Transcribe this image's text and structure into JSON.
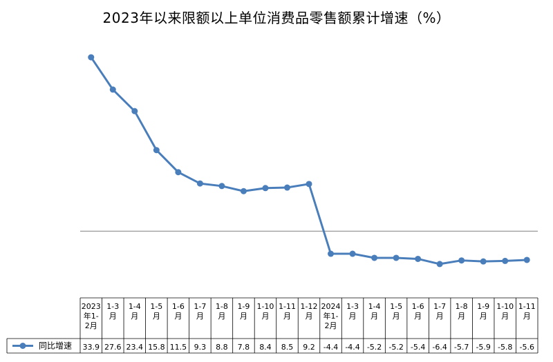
{
  "title": "2023年以来限额以上单位消费品零售额累计增速（%）",
  "chart_data": {
    "type": "line",
    "title": "2023年以来限额以上单位消费品零售额累计增速（%）",
    "categories": [
      [
        "2023",
        "年1-",
        "2月"
      ],
      [
        "1-3",
        "月"
      ],
      [
        "1-4",
        "月"
      ],
      [
        "1-5",
        "月"
      ],
      [
        "1-6",
        "月"
      ],
      [
        "1-7",
        "月"
      ],
      [
        "1-8",
        "月"
      ],
      [
        "1-9",
        "月"
      ],
      [
        "1-10",
        "月"
      ],
      [
        "1-11",
        "月"
      ],
      [
        "1-12",
        "月"
      ],
      [
        "2024",
        "年1-",
        "2月"
      ],
      [
        "1-3",
        "月"
      ],
      [
        "1-4",
        "月"
      ],
      [
        "1-5",
        "月"
      ],
      [
        "1-6",
        "月"
      ],
      [
        "1-7",
        "月"
      ],
      [
        "1-8",
        "月"
      ],
      [
        "1-9",
        "月"
      ],
      [
        "1-10",
        "月"
      ],
      [
        "1-11",
        "月"
      ]
    ],
    "series": [
      {
        "name": "同比增速",
        "color": "#4a7ebb",
        "values": [
          33.9,
          27.6,
          23.4,
          15.8,
          11.5,
          9.3,
          8.8,
          7.8,
          8.4,
          8.5,
          9.2,
          -4.4,
          -4.4,
          -5.2,
          -5.2,
          -5.4,
          -6.4,
          -5.7,
          -5.9,
          -5.8,
          -5.6
        ]
      }
    ],
    "value_labels": [
      "33.9",
      "27.6",
      "23.4",
      "15.8",
      "11.5",
      "9.3",
      "8.8",
      "7.8",
      "8.4",
      "8.5",
      "9.2",
      "-4.4",
      "-4.4",
      "-5.2",
      "-5.2",
      "-5.4",
      "-6.4",
      "-5.7",
      "-5.9",
      "-5.8",
      "-5.6"
    ],
    "ylim": [
      -13,
      37
    ],
    "zero_line": true,
    "grid": false,
    "legend_placement": "data-table-left"
  }
}
